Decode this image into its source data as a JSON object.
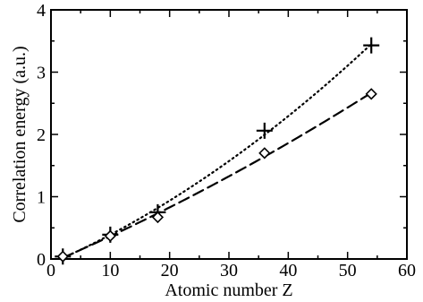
{
  "chart_data": {
    "type": "line",
    "title": "",
    "xlabel": "Atomic number Z",
    "ylabel": "Correlation energy (a.u.)",
    "xlim": [
      0,
      60
    ],
    "ylim": [
      0,
      4
    ],
    "xticks": [
      0,
      10,
      20,
      30,
      40,
      50,
      60
    ],
    "yticks": [
      0,
      1,
      2,
      3,
      4
    ],
    "xtick_labels": [
      "0",
      "10",
      "20",
      "30",
      "40",
      "50",
      "60"
    ],
    "ytick_labels": [
      "0",
      "1",
      "2",
      "3",
      "4"
    ],
    "grid": false,
    "legend": "none",
    "series": [
      {
        "marker": "plus",
        "line": "dotted",
        "color": "#000000",
        "x": [
          2,
          10,
          18,
          36,
          54
        ],
        "y": [
          0.04,
          0.39,
          0.75,
          2.06,
          3.43
        ]
      },
      {
        "marker": "diamond",
        "line": "dashed",
        "color": "#000000",
        "x": [
          2,
          10,
          18,
          36,
          54
        ],
        "y": [
          0.04,
          0.37,
          0.67,
          1.7,
          2.65
        ]
      }
    ]
  }
}
